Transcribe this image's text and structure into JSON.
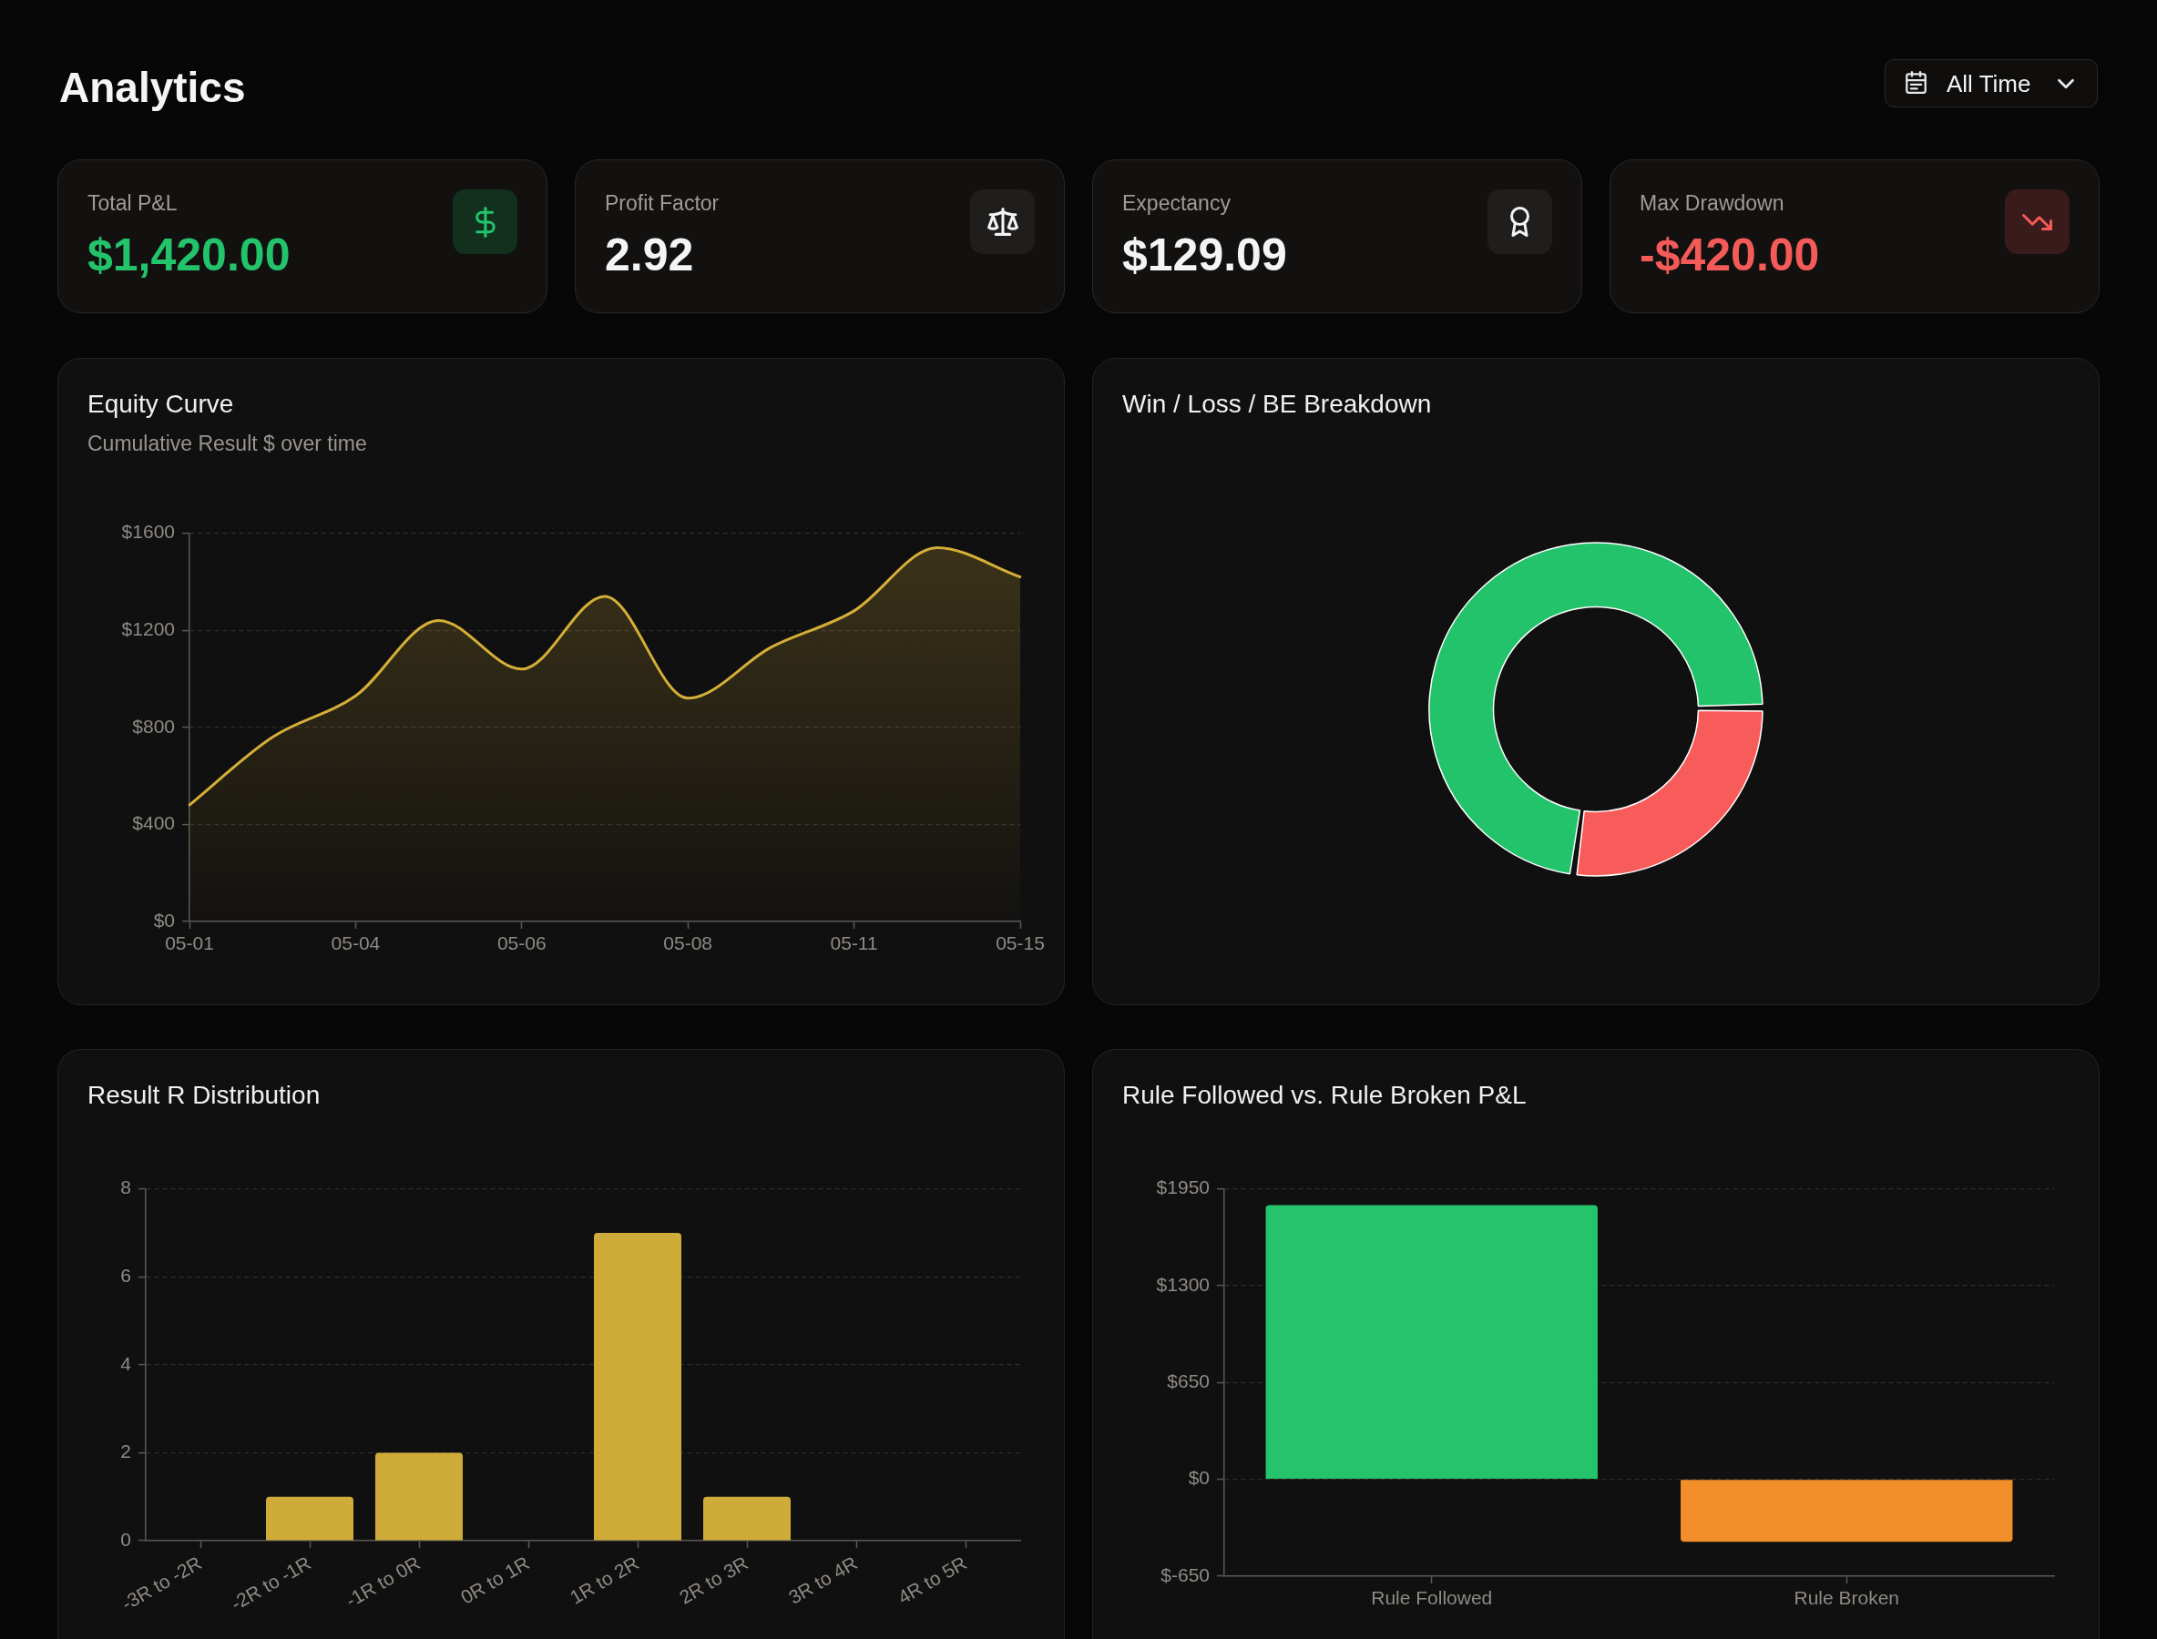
{
  "chart_data": [
    {
      "type": "other",
      "title": "Analytics",
      "annotations": [
        "All Time",
        "Total P&L",
        "$1,420.00",
        "Profit Factor",
        "2.92",
        "Expectancy",
        "$129.09",
        "Max Drawdown",
        "-$420.00"
      ]
    },
    {
      "type": "area",
      "title": "Equity Curve",
      "subtitle": "Cumulative Result $ over time",
      "categories": [
        "05-01",
        null,
        "05-04",
        null,
        "05-06",
        null,
        "05-08",
        null,
        "05-11",
        null,
        "05-15"
      ],
      "values": [
        480,
        760,
        930,
        1240,
        1040,
        1340,
        920,
        1130,
        1280,
        1540,
        1420
      ],
      "color": "#d4af37",
      "ylim": [
        0,
        1600
      ],
      "yticks": [
        {
          "value": 0,
          "label": "$0"
        },
        {
          "value": 400,
          "label": "$400"
        },
        {
          "value": 800,
          "label": "$800"
        },
        {
          "value": 1200,
          "label": "$1200"
        },
        {
          "value": 1600,
          "label": "$1600"
        }
      ],
      "grid": "y"
    },
    {
      "type": "donut",
      "title": "Win / Loss / BE Breakdown",
      "categories": [
        null,
        null
      ],
      "values": [
        73,
        27
      ],
      "colors": [
        "#22c36b",
        "#f85c5a"
      ]
    },
    {
      "type": "bar",
      "title": "Result R Distribution",
      "categories": [
        "-3R to -2R",
        "-2R to -1R",
        "-1R to 0R",
        "0R to 1R",
        "1R to 2R",
        "2R to 3R",
        "3R to 4R",
        "4R to 5R"
      ],
      "values": [
        0,
        1,
        2,
        0,
        7,
        1,
        0,
        0
      ],
      "color": "#cfab3a",
      "ylim": [
        0,
        8
      ],
      "yticks": [
        0,
        2,
        4,
        6,
        8
      ],
      "grid": "y"
    },
    {
      "type": "bar",
      "title": "Rule Followed vs. Rule Broken P&L",
      "categories": [
        "Rule Followed",
        "Rule Broken"
      ],
      "values": [
        1840,
        -420
      ],
      "colors": [
        "#25c46c",
        "#f28f2a"
      ],
      "ylim": [
        -650,
        1950
      ],
      "yticks": [
        {
          "value": -650,
          "label": "$-650"
        },
        {
          "value": 0,
          "label": "$0"
        },
        {
          "value": 650,
          "label": "$650"
        },
        {
          "value": 1300,
          "label": "$1300"
        },
        {
          "value": 1950,
          "label": "$1950"
        }
      ],
      "grid": "y"
    }
  ]
}
